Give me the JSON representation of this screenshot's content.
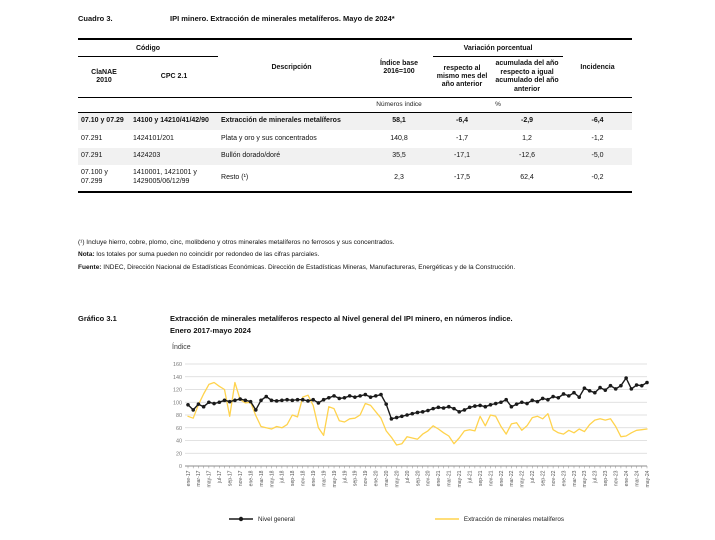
{
  "cuadro": {
    "label": "Cuadro 3.",
    "title": "IPI minero. Extracción de minerales metalíferos. Mayo de 2024*",
    "table": {
      "group_codigo": "Código",
      "group_variacion": "Variación porcentual",
      "col_clanae": "ClaNAE\n2010",
      "col_cpc": "CPC 2.1",
      "col_descripcion": "Descripción",
      "col_indice_base": "Índice base 2016=100",
      "col_var_mes": "respecto al mismo mes del año anterior",
      "col_var_acum": "acumulada del año respecto a igual acumulado del año anterior",
      "col_incidencia": "Incidencia",
      "unit_indice": "Números índice",
      "unit_pct": "%",
      "rows": [
        {
          "clanae": "07.10 y 07.29",
          "cpc": "14100 y 14210/41/42/90",
          "desc": "Extracción de minerales metalíferos",
          "indice": "58,1",
          "var_mes": "-6,4",
          "var_acum": "-2,9",
          "incidencia": "-6,4"
        },
        {
          "clanae": "07.291",
          "cpc": "1424101/201",
          "desc": "Plata y oro y sus concentrados",
          "indice": "140,8",
          "var_mes": "-1,7",
          "var_acum": "1,2",
          "incidencia": "-1,2"
        },
        {
          "clanae": "07.291",
          "cpc": "1424203",
          "desc": "Bullón dorado/doré",
          "indice": "35,5",
          "var_mes": "-17,1",
          "var_acum": "-12,6",
          "incidencia": "-5,0"
        },
        {
          "clanae": "07.100 y 07.299",
          "cpc": "1410001, 1421001 y 1429005/06/12/99",
          "desc": "Resto (¹)",
          "indice": "2,3",
          "var_mes": "-17,5",
          "var_acum": "62,4",
          "incidencia": "-0,2"
        }
      ]
    }
  },
  "footnotes": {
    "footnote1": "(¹) Incluye hierro, cobre, plomo, cinc, molibdeno y otros minerales metalíferos no ferrosos y sus concentrados.",
    "nota_label": "Nota:",
    "nota_text": " los totales por suma pueden no coincidir por redondeo de las cifras parciales.",
    "fuente_label": "Fuente:",
    "fuente_text": " INDEC, Dirección Nacional de Estadísticas Económicas. Dirección de Estadísticas Mineras, Manufactureras, Energéticas y de la Construcción."
  },
  "grafico": {
    "label": "Gráfico 3.1",
    "title": "Extracción de minerales metalíferos respecto al Nivel general del IPI minero, en números índice.\nEnero 2017-mayo 2024",
    "ylabel": "Índice"
  },
  "chart_data": {
    "type": "line",
    "title": "Extracción de minerales metalíferos respecto al Nivel general del IPI minero, en números índice. Enero 2017-mayo 2024",
    "xlabel": "",
    "ylabel": "Índice",
    "ylim": [
      0,
      160
    ],
    "yticks": [
      0,
      20,
      40,
      60,
      80,
      100,
      120,
      140,
      160
    ],
    "grid": "horizontal",
    "legend_position": "bottom",
    "xtick_every": 2,
    "x": [
      "ene-17",
      "feb-17",
      "mar-17",
      "abr-17",
      "may-17",
      "jun-17",
      "jul-17",
      "ago-17",
      "sep-17",
      "oct-17",
      "nov-17",
      "dic-17",
      "ene-18",
      "feb-18",
      "mar-18",
      "abr-18",
      "may-18",
      "jun-18",
      "jul-18",
      "ago-18",
      "sep-18",
      "oct-18",
      "nov-18",
      "dic-18",
      "ene-19",
      "feb-19",
      "mar-19",
      "abr-19",
      "may-19",
      "jun-19",
      "jul-19",
      "ago-19",
      "sep-19",
      "oct-19",
      "nov-19",
      "dic-19",
      "ene-20",
      "feb-20",
      "mar-20",
      "abr-20",
      "may-20",
      "jun-20",
      "jul-20",
      "ago-20",
      "sep-20",
      "oct-20",
      "nov-20",
      "dic-20",
      "ene-21",
      "feb-21",
      "mar-21",
      "abr-21",
      "may-21",
      "jun-21",
      "jul-21",
      "ago-21",
      "sep-21",
      "oct-21",
      "nov-21",
      "dic-21",
      "ene-22",
      "feb-22",
      "mar-22",
      "abr-22",
      "may-22",
      "jun-22",
      "jul-22",
      "ago-22",
      "sep-22",
      "oct-22",
      "nov-22",
      "dic-22",
      "ene-23",
      "feb-23",
      "mar-23",
      "abr-23",
      "may-23",
      "jun-23",
      "jul-23",
      "ago-23",
      "sep-23",
      "oct-23",
      "nov-23",
      "dic-23",
      "ene-24",
      "feb-24",
      "mar-24",
      "abr-24",
      "may-24"
    ],
    "series": [
      {
        "name": "Nivel general",
        "color": "#1a1a1a",
        "marker": "circle",
        "values": [
          96,
          88,
          97,
          93,
          100,
          98,
          100,
          103,
          101,
          103,
          105,
          103,
          101,
          88,
          103,
          109,
          103,
          102,
          103,
          104,
          103,
          104,
          104,
          102,
          104,
          99,
          104,
          107,
          110,
          106,
          107,
          110,
          108,
          110,
          112,
          108,
          110,
          112,
          97,
          74,
          76,
          78,
          80,
          82,
          84,
          85,
          87,
          90,
          92,
          91,
          93,
          90,
          85,
          88,
          92,
          94,
          95,
          93,
          96,
          98,
          100,
          104,
          93,
          97,
          100,
          98,
          103,
          101,
          106,
          104,
          109,
          107,
          113,
          110,
          115,
          108,
          122,
          118,
          115,
          123,
          119,
          126,
          121,
          126,
          138,
          121,
          127,
          126,
          131
        ]
      },
      {
        "name": "Extracción de minerales metalíferos",
        "color": "#ffd34d",
        "marker": "none",
        "values": [
          78,
          75,
          96,
          113,
          128,
          131,
          125,
          120,
          78,
          131,
          104,
          99,
          100,
          79,
          62,
          60,
          58,
          62,
          60,
          65,
          80,
          77,
          108,
          111,
          95,
          60,
          48,
          93,
          90,
          71,
          69,
          74,
          75,
          80,
          98,
          95,
          85,
          75,
          55,
          45,
          33,
          35,
          46,
          44,
          42,
          50,
          55,
          63,
          58,
          52,
          47,
          35,
          44,
          55,
          57,
          55,
          78,
          63,
          80,
          78,
          62,
          50,
          66,
          68,
          56,
          63,
          76,
          78,
          74,
          82,
          57,
          52,
          50,
          56,
          52,
          58,
          54,
          65,
          72,
          74,
          72,
          74,
          62,
          46,
          47,
          52,
          56,
          57,
          58
        ]
      }
    ]
  }
}
